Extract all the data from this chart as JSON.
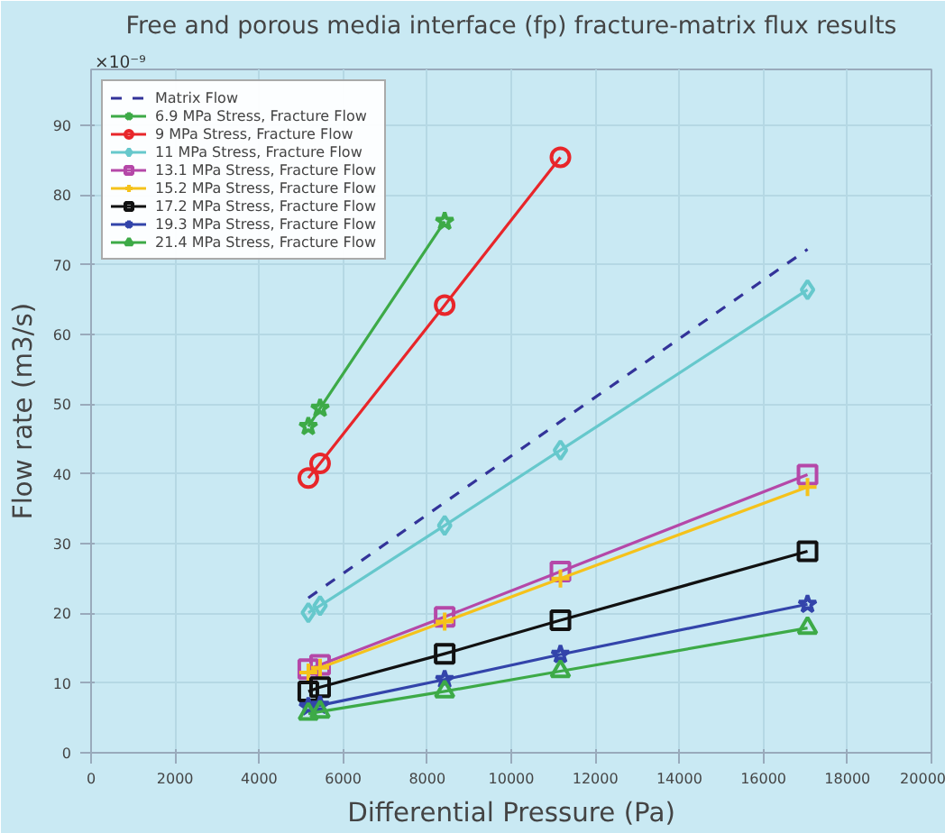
{
  "chart_data": {
    "type": "line",
    "title": "Free and porous media interface (fp) fracture-matrix flux results",
    "xlabel": "Differential Pressure (Pa)",
    "ylabel": "Flow rate (m3/s)",
    "annotations": [
      "×10⁻⁹"
    ],
    "x": [
      5170,
      5450,
      8415,
      11170,
      17050
    ],
    "xlim": [
      0,
      20000
    ],
    "xticks": [
      0,
      2000,
      4000,
      6000,
      8000,
      10000,
      12000,
      14000,
      16000,
      18000,
      20000
    ],
    "ylim": [
      0,
      98
    ],
    "yticks": [
      0,
      10,
      20,
      30,
      40,
      50,
      60,
      70,
      80,
      90
    ],
    "grid": true,
    "legend": "top left",
    "series": [
      {
        "name": "Matrix Flow",
        "color": "#333399",
        "values": [
          22.2,
          23.4,
          35.9,
          47.5,
          72.2
        ],
        "marker": "none",
        "line_style": "dashed"
      },
      {
        "name": "6.9 MPa Stress, Fracture Flow",
        "color": "#3daa47",
        "values": [
          46.8,
          49.4,
          76.2,
          null,
          null
        ],
        "marker": "star"
      },
      {
        "name": "9 MPa Stress, Fracture Flow",
        "color": "#e8262a",
        "values": [
          39.4,
          41.5,
          64.2,
          85.4,
          null
        ],
        "marker": "circle"
      },
      {
        "name": "11 MPa Stress, Fracture Flow",
        "color": "#66c8cc",
        "values": [
          20.1,
          21.1,
          32.6,
          43.4,
          66.4
        ],
        "marker": "diamond"
      },
      {
        "name": "13.1 MPa Stress, Fracture Flow",
        "color": "#b548a8",
        "values": [
          12.0,
          12.6,
          19.5,
          26.0,
          39.9
        ],
        "marker": "square"
      },
      {
        "name": "15.2 MPa Stress, Fracture Flow",
        "color": "#f5c21b",
        "values": [
          11.5,
          12.2,
          18.8,
          25.0,
          38.1
        ],
        "marker": "cross"
      },
      {
        "name": "17.2 MPa Stress, Fracture Flow",
        "color": "#111111",
        "values": [
          8.8,
          9.4,
          14.2,
          19.0,
          28.9
        ],
        "marker": "square"
      },
      {
        "name": "19.3 MPa Stress, Fracture Flow",
        "color": "#3344aa",
        "values": [
          6.6,
          6.8,
          10.5,
          14.1,
          21.3
        ],
        "marker": "star"
      },
      {
        "name": "21.4 MPa Stress, Fracture Flow",
        "color": "#3daa47",
        "values": [
          5.6,
          5.9,
          8.8,
          11.7,
          17.9
        ],
        "marker": "triangle"
      }
    ]
  }
}
